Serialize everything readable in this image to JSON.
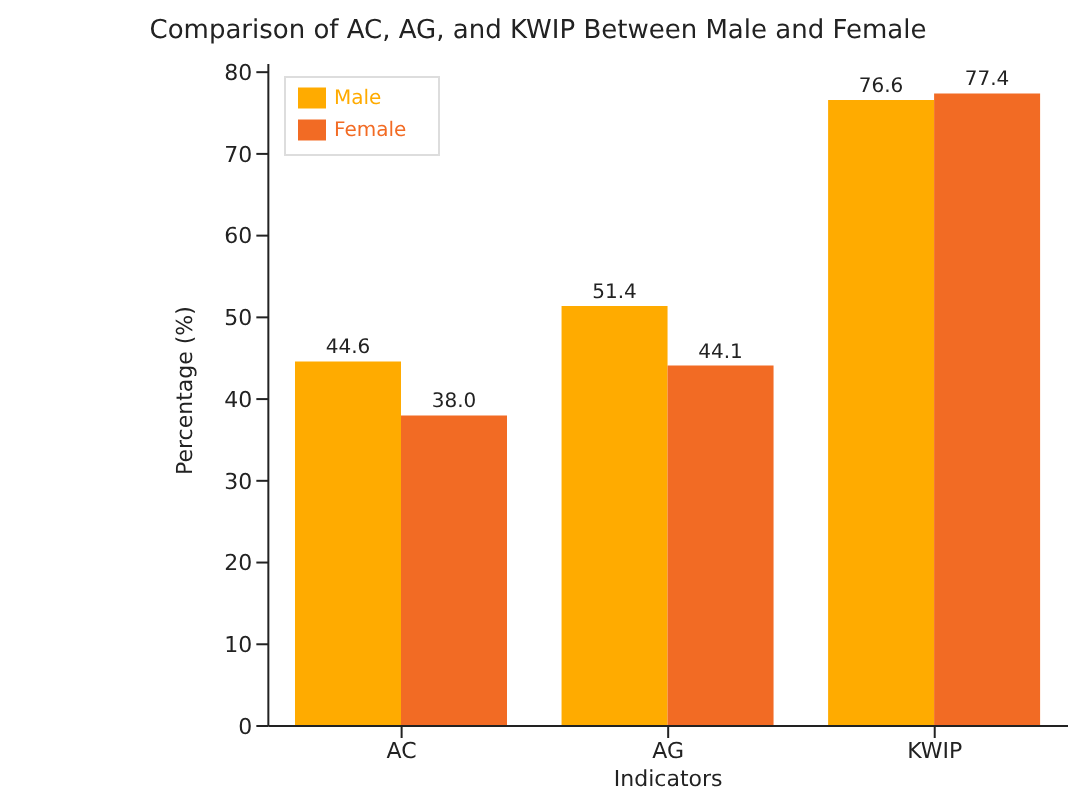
{
  "chart_data": {
    "type": "bar",
    "title": "Comparison of AC, AG, and KWIP Between Male and Female",
    "xlabel": "Indicators",
    "ylabel": "Percentage (%)",
    "categories": [
      "AC",
      "AG",
      "KWIP"
    ],
    "series": [
      {
        "name": "Male",
        "color": "#ffab00",
        "values": [
          44.6,
          51.4,
          76.6
        ],
        "value_labels": [
          "44.6",
          "51.4",
          "76.6"
        ]
      },
      {
        "name": "Female",
        "color": "#f26b24",
        "values": [
          38.0,
          44.1,
          77.4
        ],
        "value_labels": [
          "38.0",
          "44.1",
          "77.4"
        ]
      }
    ],
    "ylim": [
      0,
      81
    ],
    "yticks": [
      0,
      10,
      20,
      30,
      40,
      50,
      60,
      70,
      80
    ],
    "grid": false,
    "legend": "top left"
  }
}
